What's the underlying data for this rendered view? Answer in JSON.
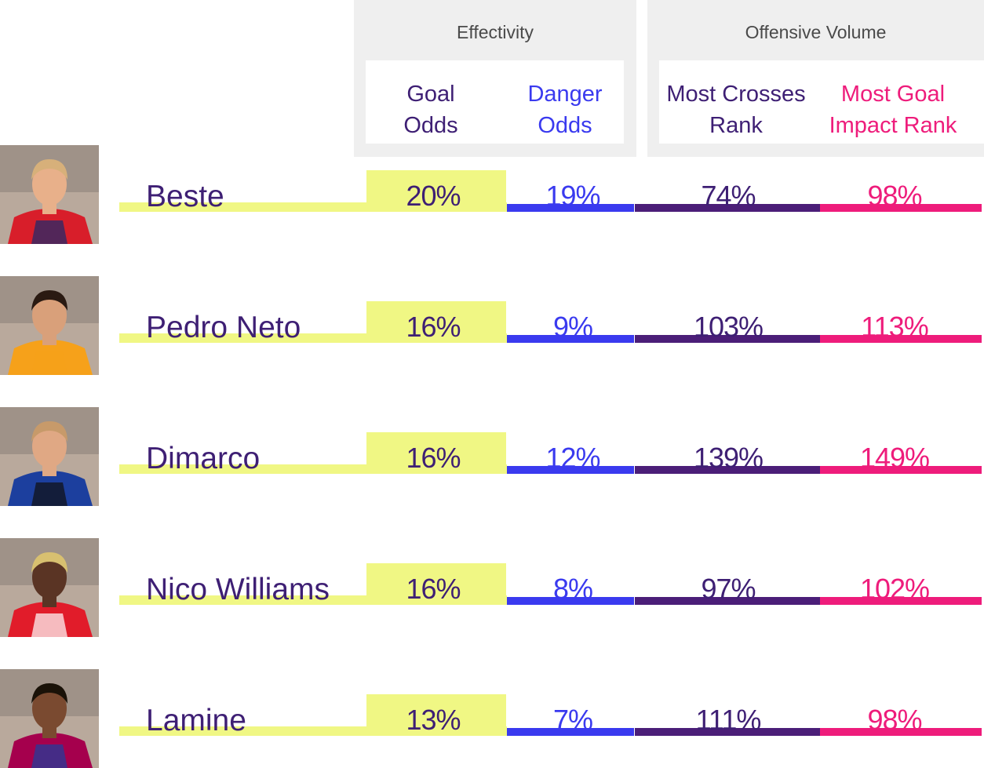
{
  "colors": {
    "goal": "#f0f784",
    "danger": "#3a3aef",
    "crosses": "#4b1e78",
    "impact": "#ee1c7b",
    "text_dark": "#3e1f74",
    "panel": "#efefef"
  },
  "groups": {
    "effectivity": "Effectivity",
    "offensive_volume": "Offensive Volume"
  },
  "columns": {
    "goal_odds": [
      "Goal",
      "Odds"
    ],
    "danger_odds": [
      "Danger",
      "Odds"
    ],
    "crosses_rank": [
      "Most Crosses",
      "Rank"
    ],
    "impact_rank": [
      "Most Goal",
      "Impact Rank"
    ]
  },
  "chart_data": {
    "type": "table",
    "columns": [
      "Goal Odds",
      "Danger Odds",
      "Most Crosses Rank",
      "Most Goal Impact Rank"
    ],
    "rows": [
      {
        "name": "Beste",
        "goal_odds": "20%",
        "danger_odds": "19%",
        "crosses_rank": "74%",
        "impact_rank": "98%",
        "photo_colors": [
          "#d81e2a",
          "#1a2a6e"
        ],
        "hair": "#d7b07a",
        "skin": "#e8b08a"
      },
      {
        "name": "Pedro Neto",
        "goal_odds": "16%",
        "danger_odds": "9%",
        "crosses_rank": "103%",
        "impact_rank": "113%",
        "photo_colors": [
          "#f6a11a",
          "#f6a11a"
        ],
        "hair": "#2a1a12",
        "skin": "#d9a07a"
      },
      {
        "name": "Dimarco",
        "goal_odds": "16%",
        "danger_odds": "12%",
        "crosses_rank": "139%",
        "impact_rank": "149%",
        "photo_colors": [
          "#1c3f9e",
          "#101010"
        ],
        "hair": "#c79a6a",
        "skin": "#e0a884"
      },
      {
        "name": "Nico Williams",
        "goal_odds": "16%",
        "danger_odds": "8%",
        "crosses_rank": "97%",
        "impact_rank": "102%",
        "photo_colors": [
          "#e11c2a",
          "#ffffff"
        ],
        "hair": "#d8c070",
        "skin": "#5a3424"
      },
      {
        "name": "Lamine",
        "goal_odds": "13%",
        "danger_odds": "7%",
        "crosses_rank": "111%",
        "impact_rank": "98%",
        "photo_colors": [
          "#a5004d",
          "#1c3f9e"
        ],
        "hair": "#1a1208",
        "skin": "#7a4a30"
      }
    ]
  }
}
